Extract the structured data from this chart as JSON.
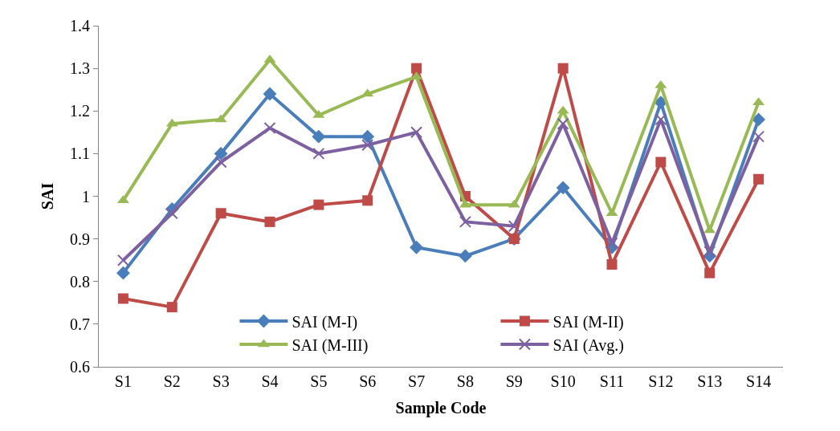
{
  "chart_data": {
    "type": "line",
    "xlabel": "Sample Code",
    "ylabel": "SAI",
    "categories": [
      "S1",
      "S2",
      "S3",
      "S4",
      "S5",
      "S6",
      "S7",
      "S8",
      "S9",
      "S10",
      "S11",
      "S12",
      "S13",
      "S14"
    ],
    "series": [
      {
        "name": "SAI (M-I)",
        "color": "#4a7ebb",
        "marker": "diamond",
        "values": [
          0.82,
          0.97,
          1.1,
          1.24,
          1.14,
          1.14,
          0.88,
          0.86,
          0.9,
          1.02,
          0.88,
          1.22,
          0.86,
          1.18
        ]
      },
      {
        "name": "SAI (M-II)",
        "color": "#be4b48",
        "marker": "square",
        "values": [
          0.76,
          0.74,
          0.96,
          0.94,
          0.98,
          0.99,
          1.3,
          1.0,
          0.9,
          1.3,
          0.84,
          1.08,
          0.82,
          1.04
        ]
      },
      {
        "name": "SAI (M-III)",
        "color": "#98b954",
        "marker": "triangle",
        "values": [
          0.99,
          1.17,
          1.18,
          1.32,
          1.19,
          1.24,
          1.28,
          0.98,
          0.98,
          1.2,
          0.96,
          1.26,
          0.92,
          1.22
        ]
      },
      {
        "name": "SAI (Avg.)",
        "color": "#7d60a0",
        "marker": "cross",
        "values": [
          0.85,
          0.96,
          1.08,
          1.16,
          1.1,
          1.12,
          1.15,
          0.94,
          0.93,
          1.17,
          0.89,
          1.18,
          0.87,
          1.14
        ]
      }
    ],
    "ylim": [
      0.6,
      1.4
    ],
    "yticks": [
      0.6,
      0.7,
      0.8,
      0.9,
      1,
      1.1,
      1.2,
      1.3,
      1.4
    ],
    "legend": "bottom"
  }
}
